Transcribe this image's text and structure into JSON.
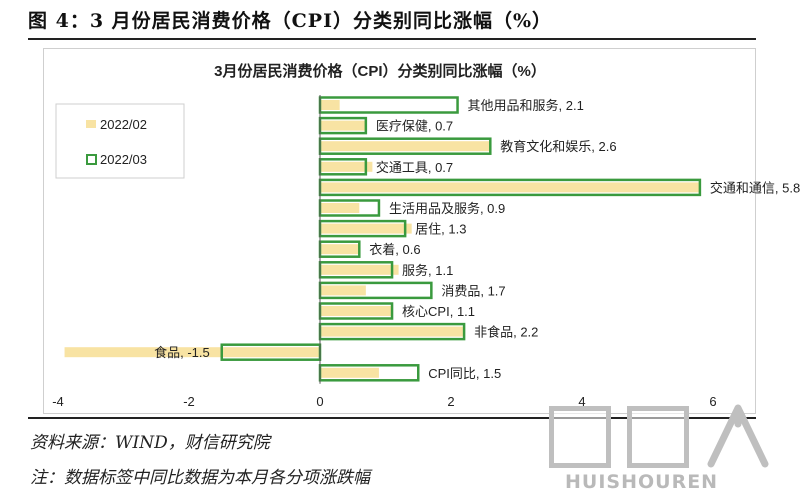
{
  "figure": {
    "title": "图 4：3 月份居民消费价格（CPI）分类别同比涨幅（%）",
    "source": "资料来源：WIND，财信研究院",
    "note": "注：数据标签中同比数据为本月各分项涨跌幅"
  },
  "watermark": {
    "text": "HUISHOUREN"
  },
  "colors": {
    "series_2022_02": "#f8e3a3",
    "series_2022_03": "#3a9a3e"
  },
  "chart_data": {
    "type": "bar",
    "orientation": "horizontal",
    "title": "3月份居民消费价格（CPI）分类别同比涨幅（%）",
    "categories": [
      "其他用品和服务",
      "医疗保健",
      "教育文化和娱乐",
      "交通工具",
      "交通和通信",
      "生活用品及服务",
      "居住",
      "衣着",
      "服务",
      "消费品",
      "核心CPI",
      "非食品",
      "食品",
      "CPI同比"
    ],
    "data_labels": [
      "其他用品和服务, 2.1",
      "医疗保健, 0.7",
      "教育文化和娱乐, 2.6",
      "交通工具, 0.7",
      "交通和通信, 5.8",
      "生活用品及服务, 0.9",
      "居住, 1.3",
      "衣着, 0.6",
      "服务, 1.1",
      "消费品, 1.7",
      "核心CPI, 1.1",
      "非食品, 2.2",
      "食品, -1.5",
      "CPI同比, 1.5"
    ],
    "series": [
      {
        "name": "2022/02",
        "style": "filled",
        "values": [
          0.3,
          0.7,
          2.6,
          0.8,
          5.8,
          0.6,
          1.4,
          0.6,
          1.2,
          0.7,
          1.1,
          2.2,
          -3.9,
          0.9
        ]
      },
      {
        "name": "2022/03",
        "style": "outlined",
        "values": [
          2.1,
          0.7,
          2.6,
          0.7,
          5.8,
          0.9,
          1.3,
          0.6,
          1.1,
          1.7,
          1.1,
          2.2,
          -1.5,
          1.5
        ]
      }
    ],
    "xlim": [
      -4,
      6
    ],
    "xticks": [
      -4,
      -2,
      0,
      2,
      4,
      6
    ],
    "grid": false,
    "legend_position": "top-left"
  }
}
